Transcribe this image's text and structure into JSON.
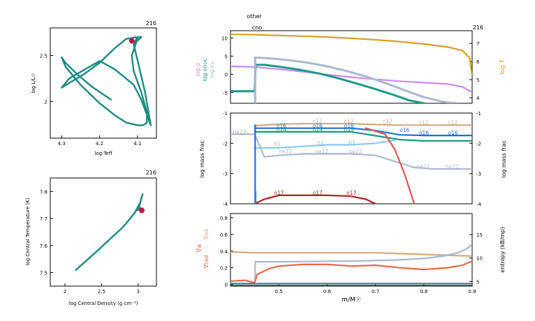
{
  "chart_data": [
    {
      "id": "hr",
      "type": "line",
      "title": "216",
      "xlabel": "log Teff",
      "ylabel": "log L/L☉",
      "xlim": [
        4.33,
        4.05
      ],
      "ylim": [
        1.6,
        2.8
      ],
      "xticks": [
        4.3,
        4.2,
        4.1
      ],
      "yticks": [
        2,
        2.5
      ],
      "color": "#1a8a80",
      "marker_color": "#cc1144",
      "series": [
        {
          "x": [
            4.17,
            4.22,
            4.26,
            4.29,
            4.3,
            4.29,
            4.25,
            4.2,
            4.16,
            4.13,
            4.1,
            4.085,
            4.075,
            4.075,
            4.09,
            4.11,
            4.115,
            4.105,
            4.1,
            4.105,
            4.115,
            4.13,
            4.16,
            4.2,
            4.24,
            4.28,
            4.3,
            4.28,
            4.2,
            4.16,
            4.11,
            4.09,
            4.065,
            4.08,
            4.1,
            4.11,
            4.1,
            4.09,
            4.1
          ],
          "y": [
            2.02,
            2.16,
            2.3,
            2.42,
            2.48,
            2.38,
            2.18,
            1.98,
            1.85,
            1.77,
            1.74,
            1.74,
            1.77,
            1.88,
            2.1,
            2.33,
            2.5,
            2.62,
            2.68,
            2.7,
            2.69,
            2.68,
            2.58,
            2.42,
            2.3,
            2.2,
            2.15,
            2.25,
            2.44,
            2.35,
            2.18,
            2.02,
            1.74,
            2.1,
            2.45,
            2.62,
            2.7,
            2.7,
            2.66
          ]
        }
      ],
      "marker": {
        "x": 4.115,
        "y": 2.66
      }
    },
    {
      "id": "center",
      "type": "line",
      "title": "216",
      "xlabel": "log Central Density (g cm⁻³)",
      "ylabel": "log Central Temperature (K)",
      "xlim": [
        1.8,
        3.25
      ],
      "ylim": [
        7.45,
        7.85
      ],
      "xticks": [
        2,
        2.5,
        3
      ],
      "yticks": [
        7.5,
        7.6,
        7.7,
        7.8
      ],
      "color": "#1a8a80",
      "marker_color": "#cc1144",
      "series": [
        {
          "x": [
            2.15,
            2.4,
            2.6,
            2.8,
            2.95,
            3.03,
            3.06,
            3.02,
            2.99,
            3.03,
            3.06
          ],
          "y": [
            7.51,
            7.57,
            7.62,
            7.67,
            7.72,
            7.76,
            7.79,
            7.75,
            7.73,
            7.74,
            7.73
          ]
        }
      ],
      "marker": {
        "x": 3.05,
        "y": 7.73
      }
    },
    {
      "id": "structure",
      "type": "line",
      "title": "216",
      "top_labels": [
        "other",
        "cno"
      ],
      "ylabel_left": [
        "log ρ",
        "log εnuc",
        "log εv"
      ],
      "ylabel_right": "log T",
      "xlim": [
        0.4,
        0.9
      ],
      "ylim": [
        -8,
        12
      ],
      "ylim_right": [
        3.7,
        7.7
      ],
      "yticks": [
        -5,
        0,
        5,
        10
      ],
      "yticks_right": [
        4,
        5,
        6,
        7
      ],
      "series": [
        {
          "name": "log T",
          "axis": "right",
          "color": "#d4a020",
          "width": 2.2,
          "x": [
            0.4,
            0.45,
            0.5,
            0.55,
            0.6,
            0.65,
            0.7,
            0.75,
            0.8,
            0.85,
            0.88,
            0.895,
            0.9
          ],
          "y": [
            7.5,
            7.48,
            7.44,
            7.4,
            7.35,
            7.28,
            7.2,
            7.1,
            6.97,
            6.8,
            6.6,
            6.2,
            5.2
          ]
        },
        {
          "name": "log ρ",
          "axis": "left",
          "color": "#cc88ee",
          "width": 2.2,
          "x": [
            0.4,
            0.45,
            0.5,
            0.55,
            0.6,
            0.65,
            0.7,
            0.75,
            0.8,
            0.85,
            0.88,
            0.9
          ],
          "y": [
            2.2,
            2.0,
            1.4,
            0.7,
            -0.1,
            -0.8,
            -1.4,
            -1.9,
            -2.3,
            -2.7,
            -3.5,
            -5
          ]
        },
        {
          "name": "log εv",
          "axis": "left",
          "color": "#a9b8d0",
          "width": 3,
          "x": [
            0.451,
            0.451,
            0.48,
            0.52,
            0.56,
            0.6,
            0.64,
            0.68,
            0.72,
            0.76,
            0.8,
            0.84,
            0.87
          ],
          "y": [
            -8,
            4.6,
            4.4,
            3.9,
            3.2,
            2.2,
            0.9,
            -0.6,
            -2.4,
            -4.4,
            -6.3,
            -7.6,
            -8
          ]
        },
        {
          "name": "log εnuc",
          "axis": "left",
          "color": "#1a9a8a",
          "width": 3,
          "x": [
            0.4,
            0.45,
            0.452,
            0.47,
            0.5,
            0.54,
            0.58,
            0.62,
            0.66,
            0.7,
            0.74,
            0.77,
            0.8
          ],
          "y": [
            -4.7,
            -4.7,
            2.6,
            2.6,
            2.1,
            1.3,
            0.3,
            -1.0,
            -2.5,
            -4.1,
            -5.8,
            -7.2,
            -8
          ]
        },
        {
          "name": "vline",
          "axis": "left",
          "color": "#a9b8d0",
          "width": 3,
          "x": [
            0.451,
            0.451
          ],
          "y": [
            -8,
            4.6
          ]
        }
      ]
    },
    {
      "id": "abundance",
      "type": "line",
      "ylabel_left": "log mass frac",
      "ylabel_right": "log mass frac",
      "xlim": [
        0.4,
        0.9
      ],
      "ylim": [
        -4,
        -1
      ],
      "yticks": [
        -4,
        -3,
        -2,
        -1
      ],
      "series": [
        {
          "name": "c12",
          "color": "#d2aa80",
          "width": 2.2,
          "x": [
            0.45,
            0.5,
            0.55,
            0.6,
            0.65,
            0.7,
            0.75,
            0.8,
            0.85,
            0.9
          ],
          "y": [
            -1.42,
            -1.37,
            -1.35,
            -1.35,
            -1.35,
            -1.38,
            -1.4,
            -1.4,
            -1.4,
            -1.4
          ]
        },
        {
          "name": "o16",
          "color": "#1f6fe0",
          "width": 2.2,
          "x": [
            0.45,
            0.5,
            0.55,
            0.6,
            0.65,
            0.7,
            0.75,
            0.8,
            0.85,
            0.9
          ],
          "y": [
            -1.5,
            -1.5,
            -1.5,
            -1.5,
            -1.5,
            -1.58,
            -1.72,
            -1.74,
            -1.74,
            -1.74
          ]
        },
        {
          "name": "n14",
          "color": "#1a9a80",
          "width": 2.2,
          "x": [
            0.45,
            0.5,
            0.55,
            0.6,
            0.65,
            0.7,
            0.75,
            0.8,
            0.85,
            0.9
          ],
          "y": [
            -1.62,
            -1.62,
            -1.62,
            -1.62,
            -1.62,
            -1.75,
            -1.88,
            -1.92,
            -1.92,
            -1.92
          ]
        },
        {
          "name": "h1",
          "color": "#88c8ee",
          "width": 2.2,
          "x": [
            0.45,
            0.5,
            0.55,
            0.6,
            0.65,
            0.7,
            0.72,
            0.74
          ],
          "y": [
            -2.15,
            -2.15,
            -2.1,
            -2.05,
            -2.05,
            -2.0,
            -1.95,
            -1.9
          ]
        },
        {
          "name": "ne22",
          "color": "#a9b8d0",
          "width": 2.2,
          "x": [
            0.4,
            0.45,
            0.47,
            0.5,
            0.55,
            0.6,
            0.65,
            0.7,
            0.74,
            0.78,
            0.82,
            0.86,
            0.9
          ],
          "y": [
            -1.7,
            -1.7,
            -2.45,
            -2.4,
            -2.35,
            -2.35,
            -2.35,
            -2.4,
            -2.6,
            -2.8,
            -2.85,
            -2.85,
            -2.85
          ]
        },
        {
          "name": "o17",
          "color": "#aa2222",
          "width": 2.2,
          "x": [
            0.45,
            0.47,
            0.5,
            0.55,
            0.6,
            0.65,
            0.68,
            0.7
          ],
          "y": [
            -4,
            -3.85,
            -3.72,
            -3.72,
            -3.72,
            -3.75,
            -3.85,
            -4
          ]
        },
        {
          "name": "h1tail",
          "color": "#dd5555",
          "width": 2.2,
          "x": [
            0.68,
            0.72,
            0.74,
            0.76,
            0.78
          ],
          "y": [
            -1.5,
            -1.7,
            -2.2,
            -3.0,
            -4
          ]
        },
        {
          "name": "o16b",
          "color": "#1f6fe0",
          "width": 2.2,
          "x": [
            0.451,
            0.451
          ],
          "y": [
            -1.4,
            -4
          ]
        },
        {
          "name": "n14b",
          "color": "#1a9a80",
          "width": 2.2,
          "x": [
            0.452,
            0.452
          ],
          "y": [
            -3.6,
            -4
          ]
        }
      ],
      "labels": [
        {
          "text": "ne22",
          "x": 0.405,
          "y": -1.68,
          "color": "#a9b8d0"
        },
        {
          "text": "o16",
          "x": 0.495,
          "y": -1.48,
          "color": "#1f6fe0"
        },
        {
          "text": "o16",
          "x": 0.57,
          "y": -1.48,
          "color": "#1f6fe0"
        },
        {
          "text": "o16",
          "x": 0.635,
          "y": -1.48,
          "color": "#1f6fe0"
        },
        {
          "text": "o16",
          "x": 0.75,
          "y": -1.62,
          "color": "#1f6fe0"
        },
        {
          "text": "o16",
          "x": 0.79,
          "y": -1.72,
          "color": "#1f6fe0"
        },
        {
          "text": "o16",
          "x": 0.85,
          "y": -1.72,
          "color": "#1f6fe0"
        },
        {
          "text": "c12",
          "x": 0.57,
          "y": -1.33,
          "color": "#d2aa80"
        },
        {
          "text": "c12",
          "x": 0.635,
          "y": -1.33,
          "color": "#d2aa80"
        },
        {
          "text": "c12",
          "x": 0.715,
          "y": -1.33,
          "color": "#d2aa80"
        },
        {
          "text": "c12",
          "x": 0.79,
          "y": -1.38,
          "color": "#d2aa80"
        },
        {
          "text": "c12",
          "x": 0.85,
          "y": -1.38,
          "color": "#d2aa80"
        },
        {
          "text": "n14",
          "x": 0.495,
          "y": -1.6,
          "color": "#1a9a80"
        },
        {
          "text": "n14",
          "x": 0.57,
          "y": -1.6,
          "color": "#1a9a80"
        },
        {
          "text": "n14",
          "x": 0.635,
          "y": -1.6,
          "color": "#1a9a80"
        },
        {
          "text": "h1",
          "x": 0.49,
          "y": -2.08,
          "color": "#88c8ee"
        },
        {
          "text": "h1",
          "x": 0.58,
          "y": -2.06,
          "color": "#88c8ee"
        },
        {
          "text": "h1",
          "x": 0.645,
          "y": -2.03,
          "color": "#88c8ee"
        },
        {
          "text": "ne22",
          "x": 0.5,
          "y": -2.33,
          "color": "#a9b8d0"
        },
        {
          "text": "ne22",
          "x": 0.575,
          "y": -2.33,
          "color": "#a9b8d0"
        },
        {
          "text": "ne22",
          "x": 0.645,
          "y": -2.33,
          "color": "#a9b8d0"
        },
        {
          "text": "ne22",
          "x": 0.785,
          "y": -2.83,
          "color": "#a9b8d0"
        },
        {
          "text": "ne22",
          "x": 0.845,
          "y": -2.83,
          "color": "#a9b8d0"
        },
        {
          "text": "o17",
          "x": 0.49,
          "y": -3.7,
          "color": "#aa2222"
        },
        {
          "text": "o17",
          "x": 0.57,
          "y": -3.7,
          "color": "#aa2222"
        },
        {
          "text": "o17",
          "x": 0.64,
          "y": -3.7,
          "color": "#aa2222"
        }
      ]
    },
    {
      "id": "gradients",
      "type": "line",
      "xlabel": "m/M☉",
      "ylabel_left": [
        "∇rad",
        "∇a",
        "∇ad"
      ],
      "ylabel_right": "entropy (kB/mp)",
      "xlim": [
        0.4,
        0.9
      ],
      "ylim": [
        -0.02,
        0.85
      ],
      "ylim_right": [
        4,
        19.5
      ],
      "xticks": [
        0.5,
        0.6,
        0.7,
        0.8,
        0.9
      ],
      "yticks": [
        0,
        0.2,
        0.4,
        0.6,
        0.8
      ],
      "yticks_right": [
        5,
        10,
        15
      ],
      "series": [
        {
          "name": "∇ad",
          "color": "#d2aa80",
          "width": 2.2,
          "x": [
            0.4,
            0.45,
            0.5,
            0.55,
            0.6,
            0.65,
            0.7,
            0.75,
            0.8,
            0.85,
            0.9
          ],
          "y": [
            0.39,
            0.38,
            0.38,
            0.38,
            0.38,
            0.38,
            0.38,
            0.37,
            0.36,
            0.35,
            0.34
          ]
        },
        {
          "name": "entropy",
          "axis": "right",
          "color": "#a9b8d0",
          "width": 2.2,
          "x": [
            0.451,
            0.451,
            0.5,
            0.55,
            0.6,
            0.65,
            0.7,
            0.75,
            0.8,
            0.84,
            0.87,
            0.89,
            0.9
          ],
          "y": [
            5,
            9.2,
            9.2,
            9.25,
            9.3,
            9.35,
            9.45,
            9.6,
            9.9,
            10.4,
            11.1,
            12,
            13
          ]
        },
        {
          "name": "∇rad",
          "color": "#ee6644",
          "width": 2.2,
          "x": [
            0.4,
            0.43,
            0.45,
            0.455,
            0.48,
            0.5,
            0.55,
            0.6,
            0.65,
            0.7,
            0.75,
            0.8,
            0.85,
            0.88,
            0.9
          ],
          "y": [
            0.04,
            0.05,
            0.02,
            0.12,
            0.19,
            0.22,
            0.24,
            0.24,
            0.22,
            0.23,
            0.2,
            0.18,
            0.2,
            0.23,
            0.28
          ]
        },
        {
          "name": "∇a",
          "color": "#1a9a8a",
          "width": 2.2,
          "x": [
            0.4,
            0.9
          ],
          "y": [
            0.01,
            0.01
          ]
        },
        {
          "name": "base",
          "color": "#444444",
          "width": 1.2,
          "x": [
            0.4,
            0.9
          ],
          "y": [
            -0.01,
            -0.01
          ]
        }
      ]
    }
  ]
}
